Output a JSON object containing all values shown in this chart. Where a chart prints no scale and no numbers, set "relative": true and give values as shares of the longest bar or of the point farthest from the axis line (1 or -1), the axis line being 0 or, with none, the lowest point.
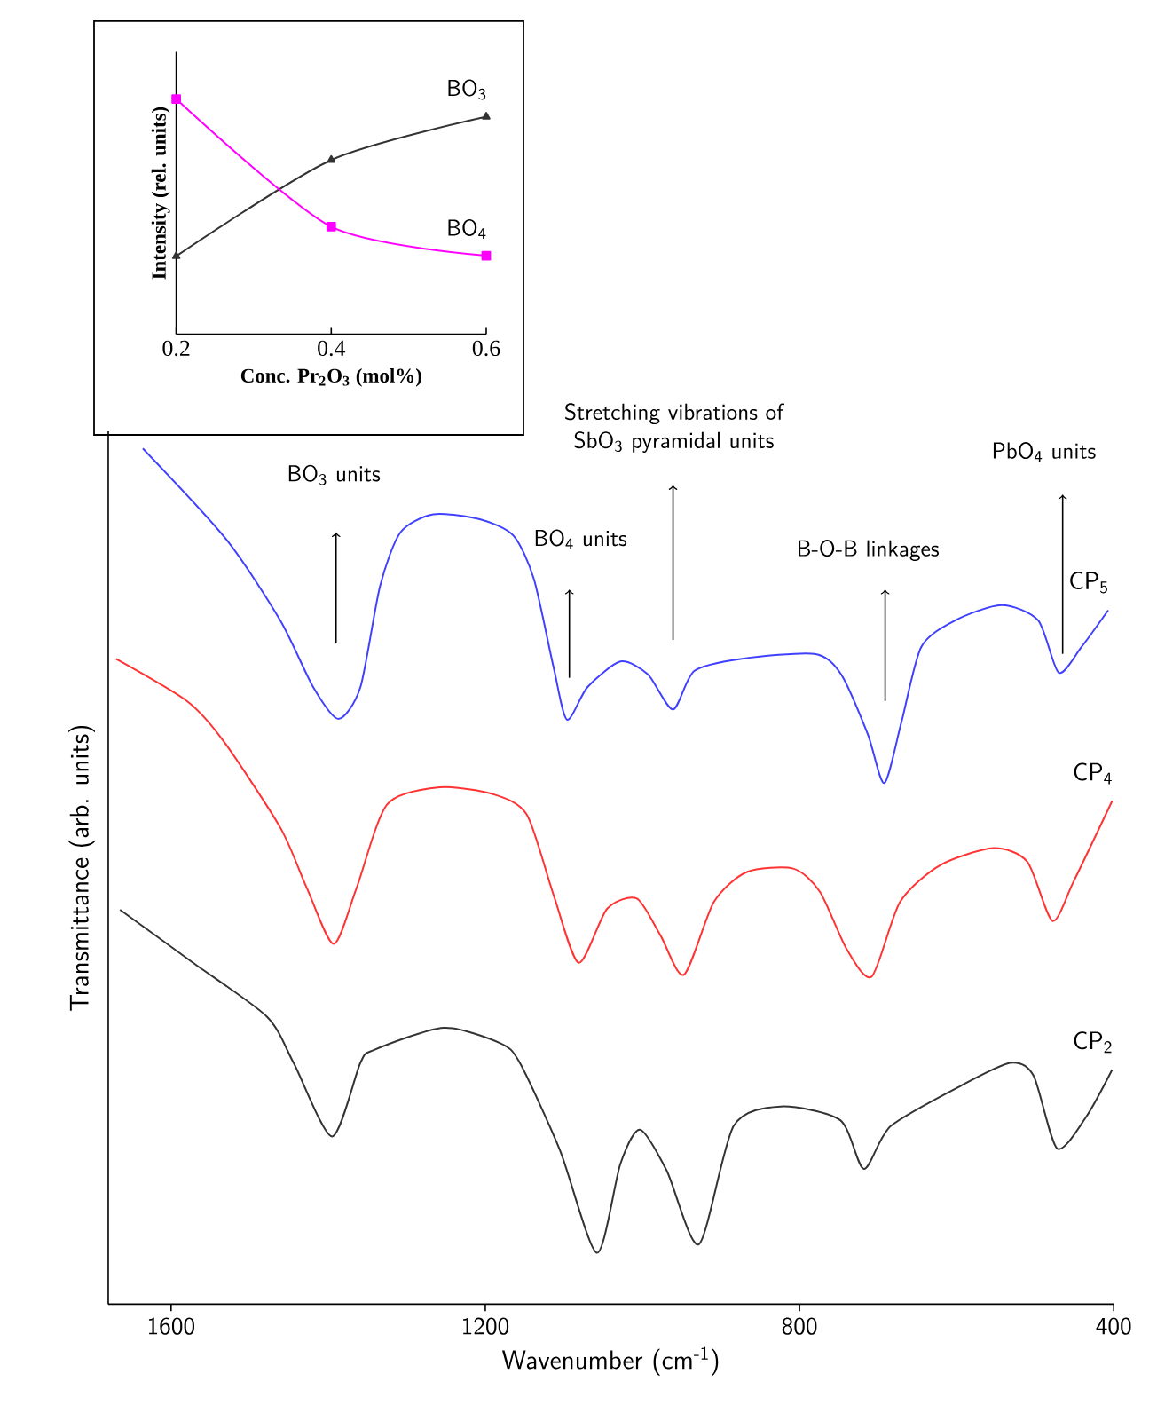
{
  "chart_data": [
    {
      "type": "line",
      "relative": true,
      "xlabel": "Wavenumber (cm$^{-1}$)",
      "ylabel": "Transmittance (arb. units)",
      "xlim": [
        1680,
        400
      ],
      "xticks": [
        1600,
        1200,
        800,
        400
      ],
      "series": [
        {
          "name": "CP$_{5}$",
          "color": "#4040ff",
          "x": [
            1636,
            1530,
            1461,
            1419,
            1387,
            1359,
            1334,
            1308,
            1266,
            1206,
            1164,
            1138,
            1113,
            1096,
            1070,
            1028,
            993,
            961,
            934,
            875,
            781,
            747,
            713,
            692,
            670,
            645,
            602,
            543,
            496,
            470,
            441,
            407
          ],
          "values": [
            1.0,
            0.894,
            0.799,
            0.721,
            0.684,
            0.721,
            0.839,
            0.902,
            0.923,
            0.917,
            0.898,
            0.847,
            0.744,
            0.683,
            0.721,
            0.751,
            0.736,
            0.695,
            0.74,
            0.754,
            0.76,
            0.736,
            0.666,
            0.609,
            0.681,
            0.768,
            0.799,
            0.817,
            0.799,
            0.738,
            0.768,
            0.811
          ]
        },
        {
          "name": "CP$_{4}$",
          "color": "#ff3333",
          "x": [
            1670,
            1580,
            1534,
            1461,
            1427,
            1393,
            1364,
            1325,
            1258,
            1190,
            1147,
            1113,
            1081,
            1045,
            1007,
            977,
            947,
            909,
            867,
            808,
            774,
            740,
            708,
            672,
            621,
            553,
            510,
            478,
            451,
            402
          ],
          "values": [
            0.754,
            0.705,
            0.659,
            0.557,
            0.486,
            0.421,
            0.486,
            0.584,
            0.604,
            0.596,
            0.572,
            0.478,
            0.399,
            0.462,
            0.474,
            0.431,
            0.385,
            0.47,
            0.505,
            0.509,
            0.482,
            0.415,
            0.383,
            0.47,
            0.513,
            0.533,
            0.517,
            0.448,
            0.494,
            0.588
          ]
        },
        {
          "name": "CP$_{2}$",
          "color": "#333333",
          "x": [
            1665,
            1572,
            1478,
            1444,
            1395,
            1359,
            1342,
            1253,
            1181,
            1156,
            1105,
            1058,
            1028,
            1003,
            969,
            928,
            884,
            824,
            748,
            718,
            684,
            595,
            532,
            502,
            472,
            435,
            402
          ],
          "values": [
            0.461,
            0.399,
            0.336,
            0.282,
            0.196,
            0.282,
            0.297,
            0.323,
            0.305,
            0.282,
            0.18,
            0.06,
            0.164,
            0.204,
            0.156,
            0.07,
            0.208,
            0.231,
            0.215,
            0.158,
            0.208,
            0.255,
            0.282,
            0.267,
            0.182,
            0.219,
            0.274
          ]
        }
      ],
      "annotations": [
        "BO$_{3}$ units",
        "BO$_{4}$ units",
        "Stretching vibrations of SbO$_{3}$ pyramidal units",
        "B-O-B linkages",
        "PbO$_{4}$ units"
      ]
    },
    {
      "type": "line",
      "relative": true,
      "xlabel": "Conc. Pr$_{2}$O$_{3}$ (mol%)",
      "ylabel": "Intensity (rel. units)",
      "xlim": [
        0.2,
        0.6
      ],
      "xticks": [
        0.2,
        0.4,
        0.6
      ],
      "series": [
        {
          "name": "BO$_{3}$",
          "color": "#333333",
          "marker": "triangle",
          "x": [
            0.2,
            0.4,
            0.6
          ],
          "values": [
            0.332,
            0.741,
            0.925
          ]
        },
        {
          "name": "BO$_{4}$",
          "color": "#ff00ff",
          "marker": "square",
          "x": [
            0.2,
            0.4,
            0.6
          ],
          "values": [
            1.0,
            0.457,
            0.334
          ]
        }
      ]
    }
  ]
}
